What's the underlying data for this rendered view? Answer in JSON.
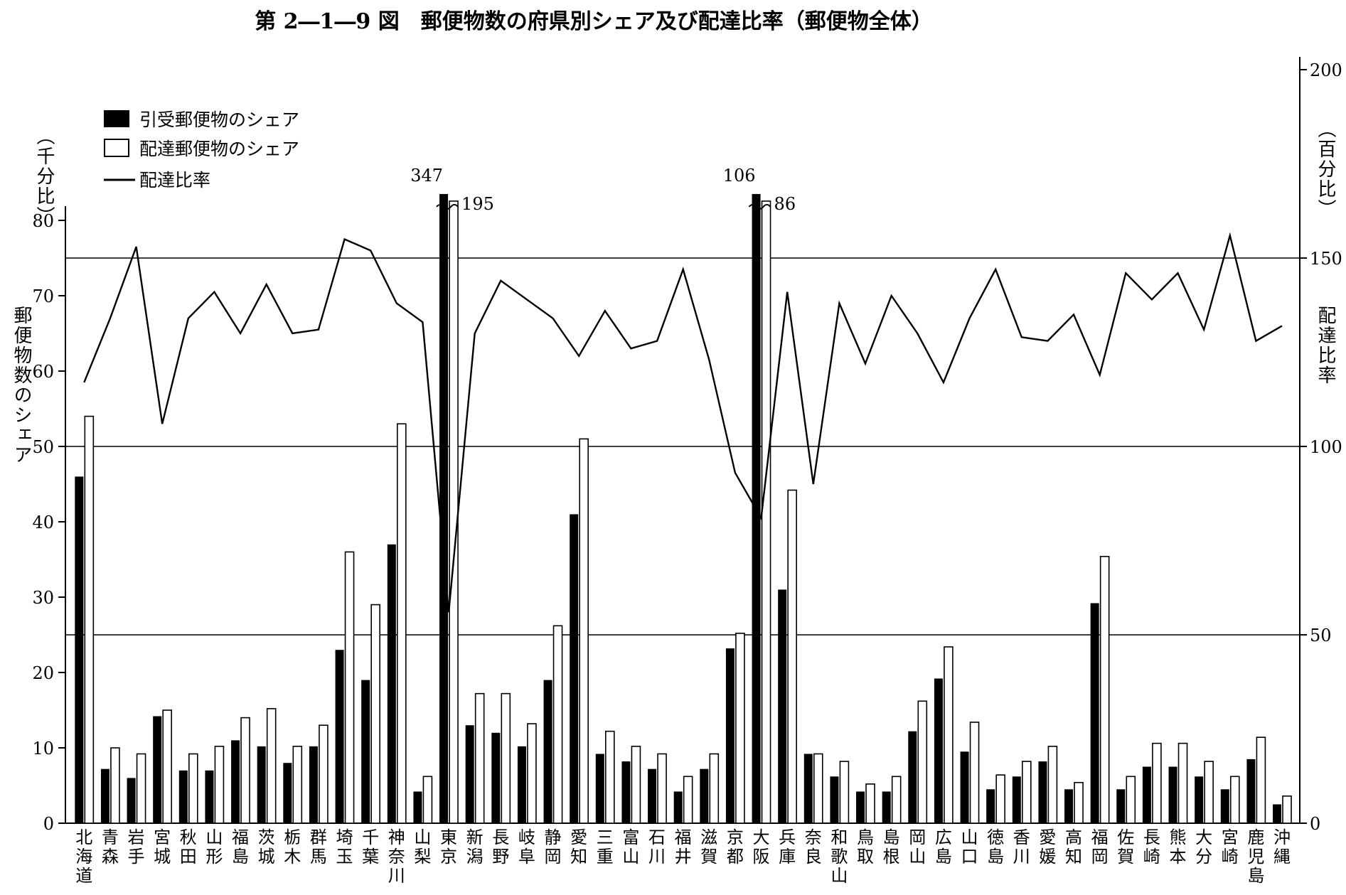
{
  "chart_data": {
    "type": "bar",
    "title": "第 2―1―9 図　郵便物数の府県別シェア及び配達比率（郵便物全体）",
    "left_axis": {
      "unit": "（千分比）",
      "label": "郵便物数のシェア",
      "ticks": [
        "0",
        "10",
        "20",
        "30",
        "40",
        "50",
        "60",
        "70",
        "80"
      ],
      "ylim": [
        0,
        90
      ]
    },
    "right_axis": {
      "unit": "（百分比）",
      "label": "配達比率",
      "ticks": [
        "0",
        "50",
        "100",
        "150",
        "200"
      ],
      "ylim": [
        0,
        200
      ]
    },
    "gridlines_right": [
      50,
      100,
      150
    ],
    "legend": {
      "position": "top-left",
      "items": [
        "引受郵便物のシェア",
        "配達郵便物のシェア",
        "配達比率"
      ]
    },
    "categories": [
      "北海道",
      "青森",
      "岩手",
      "宮城",
      "秋田",
      "山形",
      "福島",
      "茨城",
      "栃木",
      "群馬",
      "埼玉",
      "千葉",
      "神奈川",
      "山梨",
      "東京",
      "新潟",
      "長野",
      "岐阜",
      "静岡",
      "愛知",
      "三重",
      "富山",
      "石川",
      "福井",
      "滋賀",
      "京都",
      "大阪",
      "兵庫",
      "奈良",
      "和歌山",
      "鳥取",
      "島根",
      "岡山",
      "広島",
      "山口",
      "徳島",
      "香川",
      "愛媛",
      "高知",
      "福岡",
      "佐賀",
      "長崎",
      "熊本",
      "大分",
      "宮崎",
      "鹿児島",
      "沖縄"
    ],
    "category_labels": [
      "北\n海\n道",
      "青\n森",
      "岩\n手",
      "宮\n城",
      "秋\n田",
      "山\n形",
      "福\n島",
      "茨\n城",
      "栃\n木",
      "群\n馬",
      "埼\n玉",
      "千\n葉",
      "神\n奈\n川",
      "山\n梨",
      "東\n京",
      "新\n潟",
      "長\n野",
      "岐\n阜",
      "静\n岡",
      "愛\n知",
      "三\n重",
      "富\n山",
      "石\n川",
      "福\n井",
      "滋\n賀",
      "京\n都",
      "大\n阪",
      "兵\n庫",
      "奈\n良",
      "和\n歌\n山",
      "鳥\n取",
      "島\n根",
      "岡\n山",
      "広\n島",
      "山\n口",
      "徳\n島",
      "香\n川",
      "愛\n媛",
      "高\n知",
      "福\n岡",
      "佐\n賀",
      "長\n崎",
      "熊\n本",
      "大\n分",
      "宮\n崎",
      "鹿\n児\n島",
      "沖\n縄"
    ],
    "series": [
      {
        "name": "引受郵便物のシェア",
        "axis": "left",
        "values": [
          46,
          7.2,
          6,
          14.2,
          7,
          7,
          11,
          10.2,
          8,
          10.2,
          23,
          19,
          37,
          4.2,
          347,
          13,
          12,
          10.2,
          19,
          41,
          9.2,
          8.2,
          7.2,
          4.2,
          7.2,
          23.2,
          106,
          31,
          9.2,
          6.2,
          4.2,
          4.2,
          12.2,
          19.2,
          9.5,
          4.5,
          6.2,
          8.2,
          4.5,
          29.2,
          4.5,
          7.5,
          7.5,
          6.2,
          4.5,
          8.5,
          2.5
        ]
      },
      {
        "name": "配達郵便物のシェア",
        "axis": "left",
        "values": [
          54,
          10,
          9.2,
          15,
          9.2,
          10.2,
          14,
          15.2,
          10.2,
          13,
          36,
          29,
          53,
          6.2,
          195,
          17.2,
          17.2,
          13.2,
          26.2,
          51,
          12.2,
          10.2,
          9.2,
          6.2,
          9.2,
          25.2,
          86,
          44.2,
          9.2,
          8.2,
          5.2,
          6.2,
          16.2,
          23.4,
          13.4,
          6.4,
          8.2,
          10.2,
          5.4,
          35.4,
          6.2,
          10.6,
          10.6,
          8.2,
          6.2,
          11.4,
          3.6
        ]
      },
      {
        "name": "配達比率",
        "axis": "right",
        "type": "line",
        "values": [
          117,
          134,
          153,
          106,
          134,
          141,
          130,
          143,
          130,
          131,
          155,
          152,
          138,
          133,
          56,
          130,
          144,
          139,
          134,
          124,
          136,
          126,
          128,
          147,
          123,
          93,
          81,
          141,
          90,
          138,
          122,
          140,
          130,
          117,
          134,
          147,
          129,
          128,
          135,
          119,
          146,
          139,
          146,
          131,
          156,
          128,
          132
        ]
      }
    ],
    "breaks": [
      {
        "category": "東京",
        "labels": [
          "347",
          "195"
        ]
      },
      {
        "category": "大阪",
        "labels": [
          "106",
          "86"
        ]
      }
    ]
  }
}
